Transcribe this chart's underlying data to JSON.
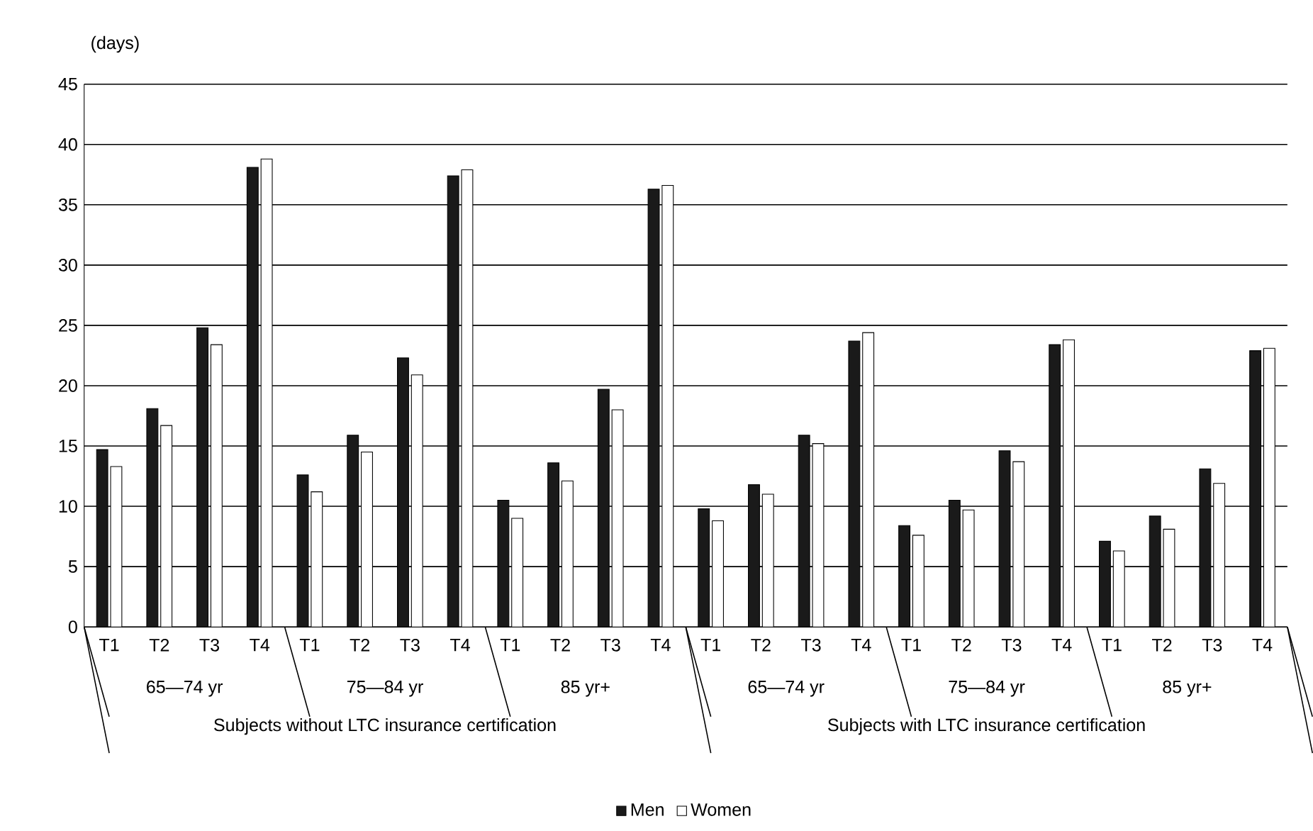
{
  "chart_data": {
    "type": "bar",
    "ylabel": "(days)",
    "categories": [
      "T1",
      "T2",
      "T3",
      "T4",
      "T1",
      "T2",
      "T3",
      "T4",
      "T1",
      "T2",
      "T3",
      "T4",
      "T1",
      "T2",
      "T3",
      "T4",
      "T1",
      "T2",
      "T3",
      "T4",
      "T1",
      "T2",
      "T3",
      "T4"
    ],
    "series": [
      {
        "name": "Men",
        "color": "#1a1a1a",
        "values": [
          14.7,
          18.1,
          24.8,
          38.1,
          12.6,
          15.9,
          22.3,
          37.4,
          10.5,
          13.6,
          19.7,
          36.3,
          9.8,
          11.8,
          15.9,
          23.7,
          8.4,
          10.5,
          14.6,
          23.4,
          7.1,
          9.2,
          13.1,
          22.9
        ]
      },
      {
        "name": "Women",
        "color": "#ffffff",
        "values": [
          13.3,
          16.7,
          23.4,
          38.8,
          11.2,
          14.5,
          20.9,
          37.9,
          9.0,
          12.1,
          18.0,
          36.6,
          8.8,
          11.0,
          15.2,
          24.4,
          7.6,
          9.7,
          13.7,
          23.8,
          6.3,
          8.1,
          11.9,
          23.1
        ]
      }
    ],
    "annotations": [
      "65—74 yr",
      "75—84 yr",
      "85 yr+",
      "65—74 yr",
      "75—84 yr",
      "85 yr+",
      "Subjects without LTC insurance certification",
      "Subjects with LTC insurance certification"
    ],
    "ylim": [
      0,
      45
    ],
    "yticks": [
      0,
      5,
      10,
      15,
      20,
      25,
      30,
      35,
      40,
      45
    ],
    "grid": "y",
    "legend": "bottom"
  }
}
